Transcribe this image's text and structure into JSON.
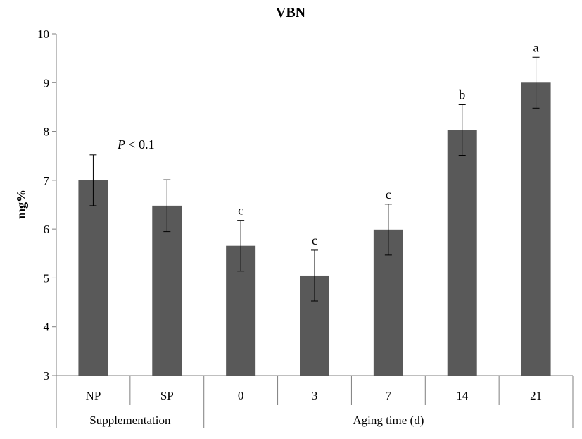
{
  "chart_data": {
    "type": "bar",
    "title": "VBN",
    "ylabel": "mg%",
    "xlabel": "",
    "ylim": [
      3,
      10
    ],
    "yticks": [
      3,
      4,
      5,
      6,
      7,
      8,
      9,
      10
    ],
    "categories": [
      "NP",
      "SP",
      "0",
      "3",
      "7",
      "14",
      "21"
    ],
    "values": [
      7.0,
      6.48,
      5.66,
      5.05,
      5.99,
      8.03,
      9.0
    ],
    "errors": [
      0.52,
      0.53,
      0.52,
      0.52,
      0.52,
      0.52,
      0.52
    ],
    "significance_letters": [
      "",
      "",
      "c",
      "c",
      "c",
      "b",
      "a"
    ],
    "groups": [
      {
        "label": "Supplementation",
        "start": 0,
        "end": 1
      },
      {
        "label": "Aging time (d)",
        "start": 2,
        "end": 6
      }
    ],
    "annotation": {
      "italic": "P",
      "text": " < 0.1"
    },
    "bar_color": "#595959",
    "grid": false,
    "legend": "none"
  }
}
